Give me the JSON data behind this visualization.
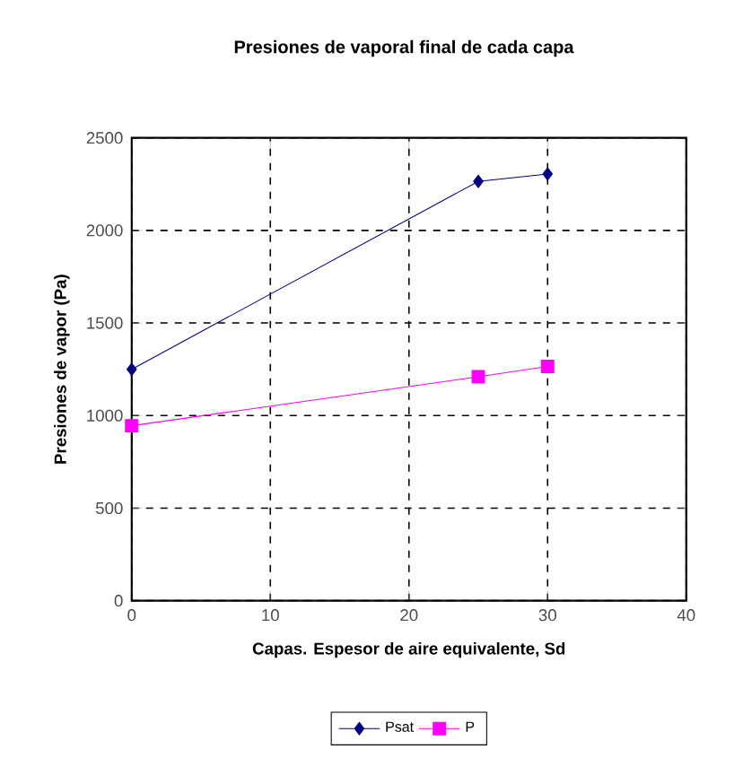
{
  "chart_data": {
    "type": "line",
    "title": "Presiones de vaporal final de cada capa",
    "xlabel": "Capas. Espesor de aire equivalente, Sd",
    "ylabel": "Presiones de vapor (Pa)",
    "x": [
      0,
      25,
      30
    ],
    "series": [
      {
        "name": "Psat",
        "color": "#000080",
        "values": [
          1250,
          2265,
          2305
        ],
        "marker": "diamond"
      },
      {
        "name": "P",
        "color": "#ff00ff",
        "values": [
          945,
          1210,
          1265
        ],
        "marker": "square"
      }
    ],
    "xlim": [
      0,
      40
    ],
    "xticks": [
      0,
      10,
      20,
      30,
      40
    ],
    "ylim": [
      0,
      2500
    ],
    "yticks": [
      0,
      500,
      1000,
      1500,
      2000,
      2500
    ],
    "grid": true,
    "legend": "bottom",
    "line_style": "solid"
  }
}
